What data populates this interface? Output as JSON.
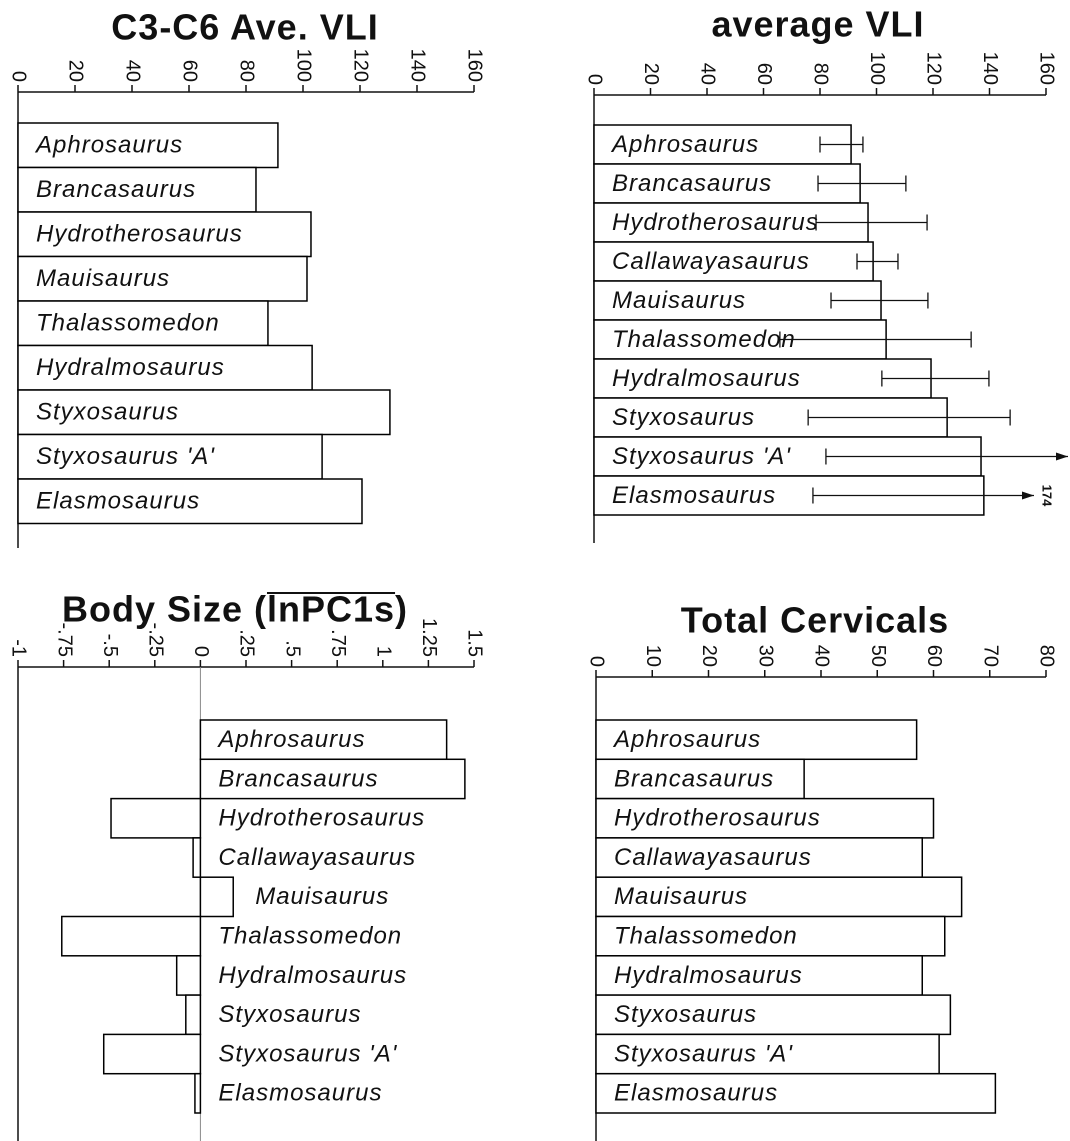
{
  "chart_data": [
    {
      "type": "bar",
      "orientation": "horizontal",
      "title": "C3-C6 Ave. VLI",
      "categories": [
        "Aphrosaurus",
        "Brancasaurus",
        "Hydrotherosaurus",
        "Mauisaurus",
        "Thalassomedon",
        "Hydralmosaurus",
        "Styxosaurus",
        "Styxosaurus 'A'",
        "Elasmosaurus"
      ],
      "values": [
        91.2,
        83.5,
        102.8,
        101.4,
        87.7,
        103.2,
        130.5,
        106.7,
        120.7
      ],
      "xlim": [
        0,
        160
      ],
      "xticks": [
        0,
        20,
        40,
        60,
        80,
        100,
        120,
        140,
        160
      ],
      "color": "#ffffff",
      "edgecolor": "#000000"
    },
    {
      "type": "bar",
      "orientation": "horizontal",
      "title": "average VLI",
      "categories": [
        "Aphrosaurus",
        "Brancasaurus",
        "Hydrotherosaurus",
        "Callawayasaurus",
        "Mauisaurus",
        "Thalassomedon",
        "Hydralmosaurus",
        "Styxosaurus",
        "Styxosaurus 'A'",
        "Elasmosaurus"
      ],
      "values": [
        91,
        94.2,
        97,
        98.8,
        101.6,
        103.4,
        119.3,
        125,
        137,
        138
      ],
      "error_low": [
        80,
        79.3,
        78.6,
        93.1,
        83.9,
        65.8,
        101.9,
        75.8,
        82.1,
        77.5
      ],
      "error_high": [
        95.2,
        110.4,
        117.9,
        107.6,
        118.2,
        133.5,
        139.8,
        147.3,
        206,
        174
      ],
      "xlim": [
        0,
        160
      ],
      "xticks": [
        0,
        20,
        40,
        60,
        80,
        100,
        120,
        140,
        160
      ],
      "color": "#ffffff",
      "edgecolor": "#000000"
    },
    {
      "type": "bar",
      "orientation": "horizontal",
      "title": "Body Size (lnPC1s)",
      "categories": [
        "Aphrosaurus",
        "Brancasaurus",
        "Hydrotherosaurus",
        "Callawayasaurus",
        "Mauisaurus",
        "Thalassomedon",
        "Hydralmosaurus",
        "Styxosaurus",
        "Styxosaurus 'A'",
        "Elasmosaurus"
      ],
      "values": [
        1.35,
        1.45,
        -0.49,
        -0.04,
        0.18,
        -0.76,
        -0.13,
        -0.08,
        -0.53,
        -0.03
      ],
      "xlim": [
        -1,
        1.5
      ],
      "xticks": [
        -1,
        {
          "value": -0.75,
          "label": "-.75"
        },
        {
          "value": -0.5,
          "label": "-.5"
        },
        {
          "value": -0.25,
          "label": "-.25"
        },
        0,
        {
          "value": 0.25,
          "label": ".25"
        },
        {
          "value": 0.5,
          "label": ".5"
        },
        {
          "value": 0.75,
          "label": ".75"
        },
        1,
        1.25,
        1.5
      ],
      "zero_line": true,
      "color": "#ffffff",
      "edgecolor": "#000000"
    },
    {
      "type": "bar",
      "orientation": "horizontal",
      "title": "Total Cervicals",
      "categories": [
        "Aphrosaurus",
        "Brancasaurus",
        "Hydrotherosaurus",
        "Callawayasaurus",
        "Mauisaurus",
        "Thalassomedon",
        "Hydralmosaurus",
        "Styxosaurus",
        "Styxosaurus 'A'",
        "Elasmosaurus"
      ],
      "values": [
        57,
        37,
        60,
        58,
        65,
        62,
        58,
        63,
        61,
        71
      ],
      "xlim": [
        0,
        80
      ],
      "xticks": [
        0,
        10,
        20,
        30,
        40,
        50,
        60,
        70,
        80
      ],
      "color": "#ffffff",
      "edgecolor": "#000000"
    }
  ]
}
